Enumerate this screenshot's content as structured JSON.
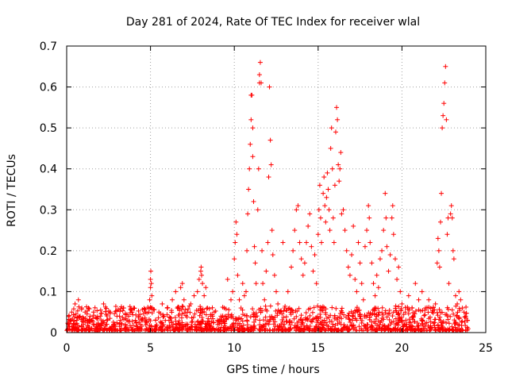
{
  "chart_data": {
    "type": "scatter",
    "title": "Day 281 of 2024, Rate Of TEC Index for receiver wlal",
    "xlabel": "GPS time / hours",
    "ylabel": "ROTI / TECUs",
    "xlim": [
      0,
      25
    ],
    "ylim": [
      0,
      0.7
    ],
    "xticks": [
      0,
      5,
      10,
      15,
      20,
      25
    ],
    "yticks": [
      0,
      0.1,
      0.2,
      0.3,
      0.4,
      0.5,
      0.6,
      0.7
    ],
    "xtick_labels": [
      "0",
      "5",
      "10",
      "15",
      "20",
      "25"
    ],
    "ytick_labels": [
      "0",
      "0.1",
      "0.2",
      "0.3",
      "0.4",
      "0.5",
      "0.6",
      "0.7"
    ],
    "grid": true,
    "marker": "+",
    "color": "#ff0000",
    "series": [
      {
        "name": "ROTI",
        "points": [
          [
            0.1,
            0.02
          ],
          [
            0.2,
            0.03
          ],
          [
            0.3,
            0.05
          ],
          [
            0.4,
            0.02
          ],
          [
            0.5,
            0.07
          ],
          [
            0.6,
            0.03
          ],
          [
            0.7,
            0.08
          ],
          [
            0.8,
            0.04
          ],
          [
            0.9,
            0.06
          ],
          [
            1.0,
            0.02
          ],
          [
            1.1,
            0.05
          ],
          [
            1.2,
            0.03
          ],
          [
            1.3,
            0.06
          ],
          [
            1.4,
            0.04
          ],
          [
            1.5,
            0.03
          ],
          [
            1.6,
            0.05
          ],
          [
            1.8,
            0.02
          ],
          [
            2.0,
            0.04
          ],
          [
            2.2,
            0.07
          ],
          [
            2.4,
            0.03
          ],
          [
            2.6,
            0.05
          ],
          [
            2.8,
            0.02
          ],
          [
            3.0,
            0.04
          ],
          [
            3.2,
            0.03
          ],
          [
            3.4,
            0.06
          ],
          [
            3.5,
            0.02
          ],
          [
            3.7,
            0.04
          ],
          [
            3.9,
            0.05
          ],
          [
            4.1,
            0.03
          ],
          [
            4.3,
            0.04
          ],
          [
            4.5,
            0.03
          ],
          [
            4.7,
            0.05
          ],
          [
            4.9,
            0.05
          ],
          [
            4.95,
            0.08
          ],
          [
            5.0,
            0.11
          ],
          [
            5.0,
            0.13
          ],
          [
            5.02,
            0.15
          ],
          [
            5.05,
            0.12
          ],
          [
            5.08,
            0.09
          ],
          [
            5.1,
            0.06
          ],
          [
            5.3,
            0.03
          ],
          [
            5.5,
            0.05
          ],
          [
            5.7,
            0.07
          ],
          [
            5.8,
            0.04
          ],
          [
            6.0,
            0.06
          ],
          [
            6.1,
            0.03
          ],
          [
            6.3,
            0.08
          ],
          [
            6.5,
            0.1
          ],
          [
            6.6,
            0.06
          ],
          [
            6.8,
            0.11
          ],
          [
            6.9,
            0.12
          ],
          [
            7.0,
            0.08
          ],
          [
            7.2,
            0.05
          ],
          [
            7.4,
            0.07
          ],
          [
            7.6,
            0.09
          ],
          [
            7.8,
            0.1
          ],
          [
            7.9,
            0.13
          ],
          [
            8.0,
            0.15
          ],
          [
            8.02,
            0.16
          ],
          [
            8.05,
            0.14
          ],
          [
            8.1,
            0.12
          ],
          [
            8.2,
            0.09
          ],
          [
            8.3,
            0.11
          ],
          [
            8.4,
            0.06
          ],
          [
            8.6,
            0.04
          ],
          [
            8.8,
            0.05
          ],
          [
            9.0,
            0.03
          ],
          [
            9.2,
            0.04
          ],
          [
            9.4,
            0.06
          ],
          [
            9.5,
            0.04
          ],
          [
            9.6,
            0.13
          ],
          [
            9.8,
            0.08
          ],
          [
            9.9,
            0.1
          ],
          [
            10.0,
            0.18
          ],
          [
            10.05,
            0.22
          ],
          [
            10.1,
            0.27
          ],
          [
            10.15,
            0.24
          ],
          [
            10.2,
            0.14
          ],
          [
            10.3,
            0.08
          ],
          [
            10.4,
            0.06
          ],
          [
            10.5,
            0.12
          ],
          [
            10.6,
            0.09
          ],
          [
            10.7,
            0.1
          ],
          [
            10.75,
            0.2
          ],
          [
            10.8,
            0.29
          ],
          [
            10.85,
            0.35
          ],
          [
            10.9,
            0.4
          ],
          [
            10.95,
            0.46
          ],
          [
            11.0,
            0.52
          ],
          [
            11.0,
            0.58
          ],
          [
            11.05,
            0.58
          ],
          [
            11.1,
            0.5
          ],
          [
            11.1,
            0.43
          ],
          [
            11.15,
            0.32
          ],
          [
            11.2,
            0.21
          ],
          [
            11.25,
            0.17
          ],
          [
            11.3,
            0.12
          ],
          [
            11.4,
            0.3
          ],
          [
            11.45,
            0.4
          ],
          [
            11.5,
            0.61
          ],
          [
            11.5,
            0.63
          ],
          [
            11.55,
            0.66
          ],
          [
            11.6,
            0.61
          ],
          [
            11.65,
            0.2
          ],
          [
            11.7,
            0.12
          ],
          [
            11.8,
            0.08
          ],
          [
            11.9,
            0.15
          ],
          [
            12.0,
            0.22
          ],
          [
            12.05,
            0.38
          ],
          [
            12.1,
            0.6
          ],
          [
            12.15,
            0.47
          ],
          [
            12.2,
            0.41
          ],
          [
            12.25,
            0.25
          ],
          [
            12.3,
            0.19
          ],
          [
            12.4,
            0.14
          ],
          [
            12.5,
            0.1
          ],
          [
            12.6,
            0.07
          ],
          [
            12.7,
            0.05
          ],
          [
            12.9,
            0.22
          ],
          [
            13.0,
            0.06
          ],
          [
            13.2,
            0.1
          ],
          [
            13.4,
            0.16
          ],
          [
            13.5,
            0.2
          ],
          [
            13.6,
            0.25
          ],
          [
            13.7,
            0.3
          ],
          [
            13.8,
            0.31
          ],
          [
            13.9,
            0.22
          ],
          [
            14.0,
            0.18
          ],
          [
            14.1,
            0.14
          ],
          [
            14.2,
            0.17
          ],
          [
            14.3,
            0.22
          ],
          [
            14.4,
            0.26
          ],
          [
            14.5,
            0.29
          ],
          [
            14.6,
            0.21
          ],
          [
            14.7,
            0.15
          ],
          [
            14.8,
            0.19
          ],
          [
            14.9,
            0.12
          ],
          [
            15.0,
            0.24
          ],
          [
            15.05,
            0.3
          ],
          [
            15.1,
            0.36
          ],
          [
            15.15,
            0.28
          ],
          [
            15.2,
            0.22
          ],
          [
            15.3,
            0.34
          ],
          [
            15.35,
            0.38
          ],
          [
            15.4,
            0.31
          ],
          [
            15.45,
            0.27
          ],
          [
            15.5,
            0.33
          ],
          [
            15.55,
            0.39
          ],
          [
            15.6,
            0.35
          ],
          [
            15.65,
            0.3
          ],
          [
            15.7,
            0.25
          ],
          [
            15.75,
            0.45
          ],
          [
            15.8,
            0.5
          ],
          [
            15.85,
            0.4
          ],
          [
            15.9,
            0.28
          ],
          [
            15.95,
            0.22
          ],
          [
            16.0,
            0.36
          ],
          [
            16.05,
            0.49
          ],
          [
            16.1,
            0.55
          ],
          [
            16.15,
            0.52
          ],
          [
            16.2,
            0.41
          ],
          [
            16.25,
            0.37
          ],
          [
            16.3,
            0.4
          ],
          [
            16.35,
            0.44
          ],
          [
            16.4,
            0.29
          ],
          [
            16.5,
            0.3
          ],
          [
            16.6,
            0.25
          ],
          [
            16.7,
            0.2
          ],
          [
            16.8,
            0.16
          ],
          [
            16.9,
            0.14
          ],
          [
            17.0,
            0.19
          ],
          [
            17.1,
            0.26
          ],
          [
            17.2,
            0.13
          ],
          [
            17.3,
            0.1
          ],
          [
            17.4,
            0.22
          ],
          [
            17.5,
            0.17
          ],
          [
            17.6,
            0.12
          ],
          [
            17.7,
            0.08
          ],
          [
            17.8,
            0.21
          ],
          [
            17.9,
            0.25
          ],
          [
            18.0,
            0.31
          ],
          [
            18.05,
            0.28
          ],
          [
            18.1,
            0.22
          ],
          [
            18.2,
            0.17
          ],
          [
            18.3,
            0.12
          ],
          [
            18.4,
            0.09
          ],
          [
            18.5,
            0.14
          ],
          [
            18.6,
            0.11
          ],
          [
            18.7,
            0.18
          ],
          [
            18.8,
            0.2
          ],
          [
            18.9,
            0.25
          ],
          [
            19.0,
            0.34
          ],
          [
            19.05,
            0.28
          ],
          [
            19.1,
            0.21
          ],
          [
            19.2,
            0.15
          ],
          [
            19.3,
            0.19
          ],
          [
            19.4,
            0.28
          ],
          [
            19.45,
            0.31
          ],
          [
            19.5,
            0.24
          ],
          [
            19.6,
            0.18
          ],
          [
            19.7,
            0.13
          ],
          [
            19.8,
            0.16
          ],
          [
            19.9,
            0.1
          ],
          [
            20.0,
            0.07
          ],
          [
            20.2,
            0.05
          ],
          [
            20.4,
            0.09
          ],
          [
            20.6,
            0.06
          ],
          [
            20.8,
            0.12
          ],
          [
            21.0,
            0.08
          ],
          [
            21.2,
            0.1
          ],
          [
            21.4,
            0.06
          ],
          [
            21.6,
            0.08
          ],
          [
            21.8,
            0.05
          ],
          [
            22.0,
            0.07
          ],
          [
            22.1,
            0.17
          ],
          [
            22.15,
            0.23
          ],
          [
            22.2,
            0.2
          ],
          [
            22.25,
            0.16
          ],
          [
            22.3,
            0.27
          ],
          [
            22.35,
            0.34
          ],
          [
            22.4,
            0.5
          ],
          [
            22.45,
            0.53
          ],
          [
            22.5,
            0.56
          ],
          [
            22.55,
            0.61
          ],
          [
            22.6,
            0.65
          ],
          [
            22.65,
            0.52
          ],
          [
            22.7,
            0.24
          ],
          [
            22.75,
            0.28
          ],
          [
            22.8,
            0.12
          ],
          [
            22.9,
            0.29
          ],
          [
            22.95,
            0.31
          ],
          [
            23.0,
            0.28
          ],
          [
            23.05,
            0.2
          ],
          [
            23.1,
            0.18
          ],
          [
            23.2,
            0.09
          ],
          [
            23.3,
            0.07
          ],
          [
            23.4,
            0.1
          ],
          [
            23.5,
            0.08
          ],
          [
            23.6,
            0.06
          ],
          [
            23.7,
            0.05
          ],
          [
            23.8,
            0.04
          ],
          [
            23.9,
            0.03
          ]
        ]
      }
    ]
  }
}
